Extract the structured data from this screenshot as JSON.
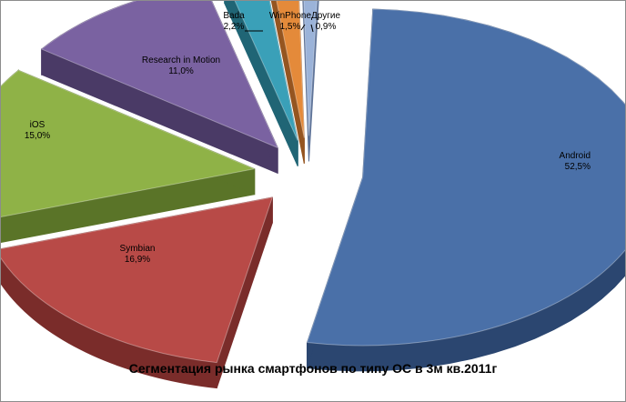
{
  "chart_data": {
    "type": "pie",
    "title": "Сегментация рынка смартфонов по типу ОС в 3м кв.2011г",
    "slices": [
      {
        "name": "Android",
        "value": 52.5,
        "label": "52,5%",
        "color": "#4a70a8",
        "dark": "#2b4670"
      },
      {
        "name": "Symbian",
        "value": 16.9,
        "label": "16,9%",
        "color": "#b84a47",
        "dark": "#7a2c2a"
      },
      {
        "name": "iOS",
        "value": 15.0,
        "label": "15,0%",
        "color": "#8fb247",
        "dark": "#5a7428"
      },
      {
        "name": "Research in Motion",
        "value": 11.0,
        "label": "11,0%",
        "color": "#7a62a1",
        "dark": "#4a3a66"
      },
      {
        "name": "Bada",
        "value": 2.2,
        "label": "2,2%",
        "color": "#3aa0b8",
        "dark": "#206575"
      },
      {
        "name": "WinPhone",
        "value": 1.5,
        "label": "1,5%",
        "color": "#e48a3a",
        "dark": "#955520"
      },
      {
        "name": "Другие",
        "value": 0.9,
        "label": "0,9%",
        "color": "#9bb3d9",
        "dark": "#5f7499"
      }
    ]
  }
}
